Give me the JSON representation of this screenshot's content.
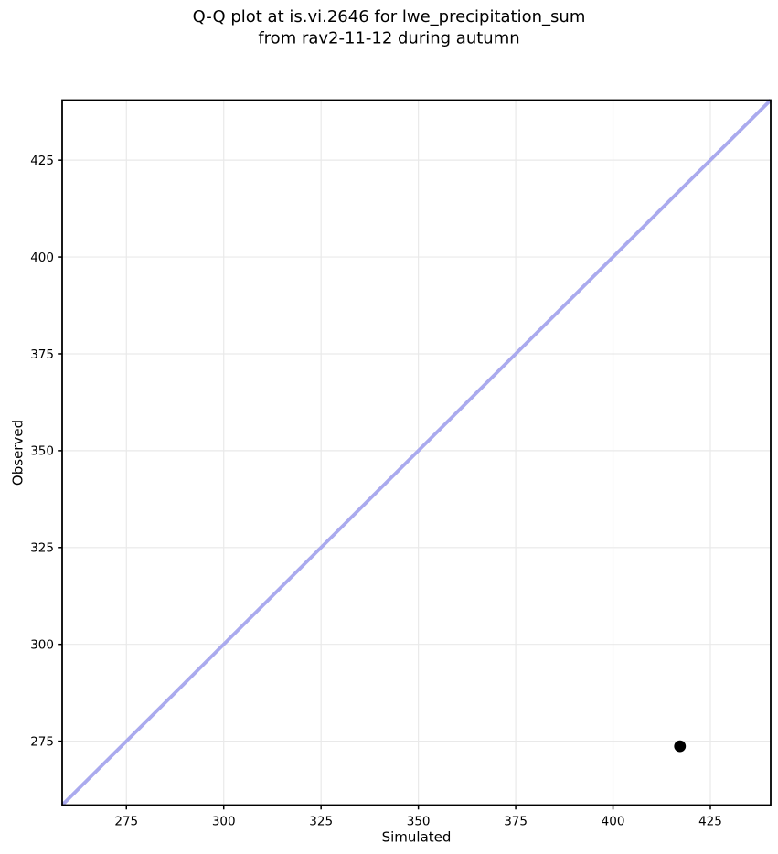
{
  "title": {
    "line1": "Q-Q plot at is.vi.2646 for lwe_precipitation_sum",
    "line2": "from rav2-11-12 during autumn"
  },
  "chart_data": {
    "type": "scatter",
    "title": "Q-Q plot at is.vi.2646 for lwe_precipitation_sum\nfrom rav2-11-12 during autumn",
    "xlabel": "Simulated",
    "ylabel": "Observed",
    "xlim": [
      258.5,
      440.5
    ],
    "ylim": [
      258.5,
      440.5
    ],
    "xticks": [
      275,
      300,
      325,
      350,
      375,
      400,
      425
    ],
    "yticks": [
      275,
      300,
      325,
      350,
      375,
      400,
      425
    ],
    "grid": true,
    "legend": false,
    "series": [
      {
        "name": "quantile-points",
        "type": "scatter",
        "x": [
          417.2
        ],
        "y": [
          273.7
        ],
        "color": "#000000"
      }
    ],
    "reference_line": {
      "name": "identity-line",
      "x": [
        258.5,
        440.5
      ],
      "y": [
        258.5,
        440.5
      ],
      "color": "#aaaaee"
    }
  },
  "colors": {
    "background": "#ffffff",
    "grid": "#e9e9e9",
    "spine": "#000000",
    "tick": "#000000",
    "text": "#000000",
    "identity_line": "#aaaaee",
    "point": "#000000"
  }
}
